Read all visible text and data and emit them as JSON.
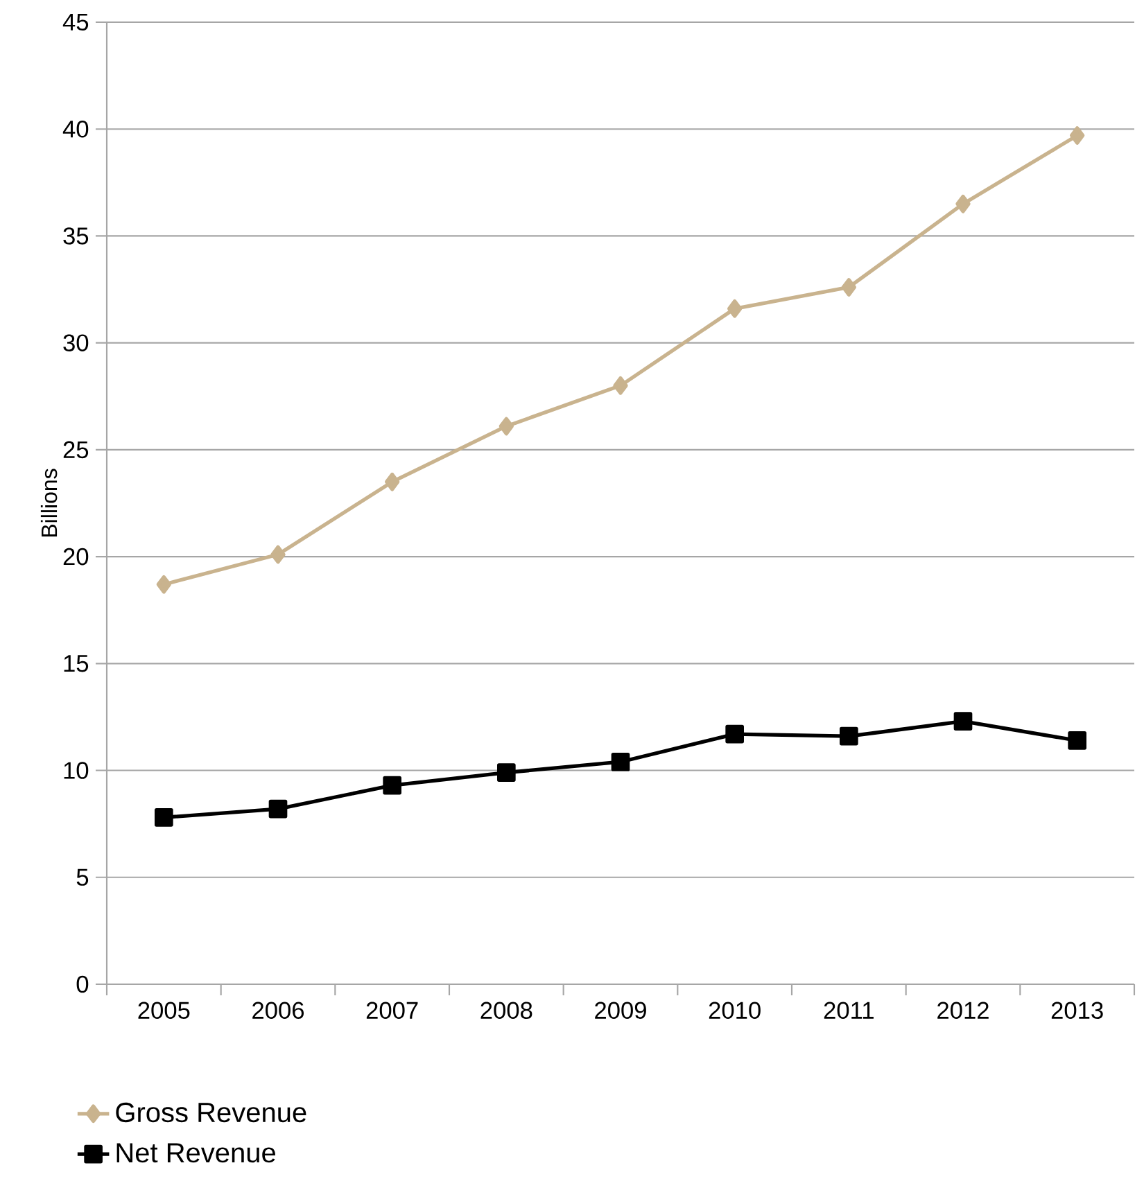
{
  "chart_data": {
    "type": "line",
    "ylabel": "Billions",
    "categories": [
      "2005",
      "2006",
      "2007",
      "2008",
      "2009",
      "2010",
      "2011",
      "2012",
      "2013"
    ],
    "series": [
      {
        "name": "Gross Revenue",
        "color": "#c9b38e",
        "marker": "diamond",
        "values": [
          18.7,
          20.1,
          23.5,
          26.1,
          28.0,
          31.6,
          32.6,
          36.5,
          39.7
        ]
      },
      {
        "name": "Net Revenue",
        "color": "#000000",
        "marker": "square",
        "values": [
          7.8,
          8.2,
          9.3,
          9.9,
          10.4,
          11.7,
          11.6,
          12.3,
          11.4
        ]
      }
    ],
    "ylim": [
      0,
      45
    ],
    "yticks": [
      0,
      5,
      10,
      15,
      20,
      25,
      30,
      35,
      40,
      45
    ],
    "grid": "y",
    "legend": "bottom left"
  }
}
